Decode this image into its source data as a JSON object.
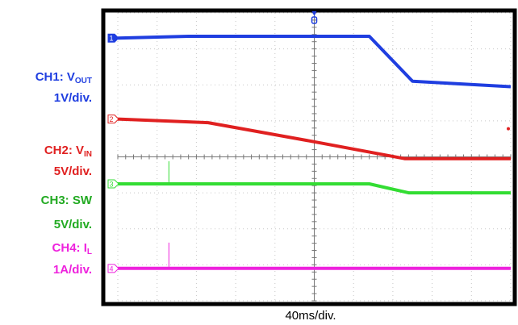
{
  "chart_data": {
    "type": "line",
    "title": "",
    "time_scale_label": "40ms/div.",
    "divisions": {
      "x": 10,
      "y": 8
    },
    "x_range_div": [
      0,
      10
    ],
    "y_range_div": [
      -4,
      4
    ],
    "grid": true,
    "series": [
      {
        "name": "CH1",
        "label_parts": [
          "CH1: V",
          "OUT"
        ],
        "scale": "1V/div.",
        "color": "#1f3ee0",
        "marker_text": "1",
        "x": [
          0,
          1.8,
          6.4,
          7.5,
          10
        ],
        "y": [
          3.3,
          3.35,
          3.35,
          2.1,
          1.95
        ]
      },
      {
        "name": "CH2",
        "label_parts": [
          "CH2: V",
          "IN"
        ],
        "scale": "5V/div.",
        "color": "#e02020",
        "marker_text": "2",
        "x": [
          0,
          2.3,
          5.0,
          7.3,
          10
        ],
        "y": [
          1.05,
          0.95,
          0.42,
          -0.05,
          -0.05
        ]
      },
      {
        "name": "CH3",
        "label_parts": [
          "CH3: SW",
          ""
        ],
        "scale": "5V/div.",
        "color": "#33dd33",
        "marker_text": "3",
        "x": [
          0,
          6.4,
          7.4,
          10
        ],
        "y": [
          -0.75,
          -0.75,
          -1.0,
          -1.0
        ]
      },
      {
        "name": "CH4",
        "label_parts": [
          "CH4: I",
          "L"
        ],
        "scale": "1A/div.",
        "color": "#ee22dd",
        "marker_text": "4",
        "x": [
          0,
          10
        ],
        "y": [
          -3.1,
          -3.1
        ]
      }
    ]
  }
}
